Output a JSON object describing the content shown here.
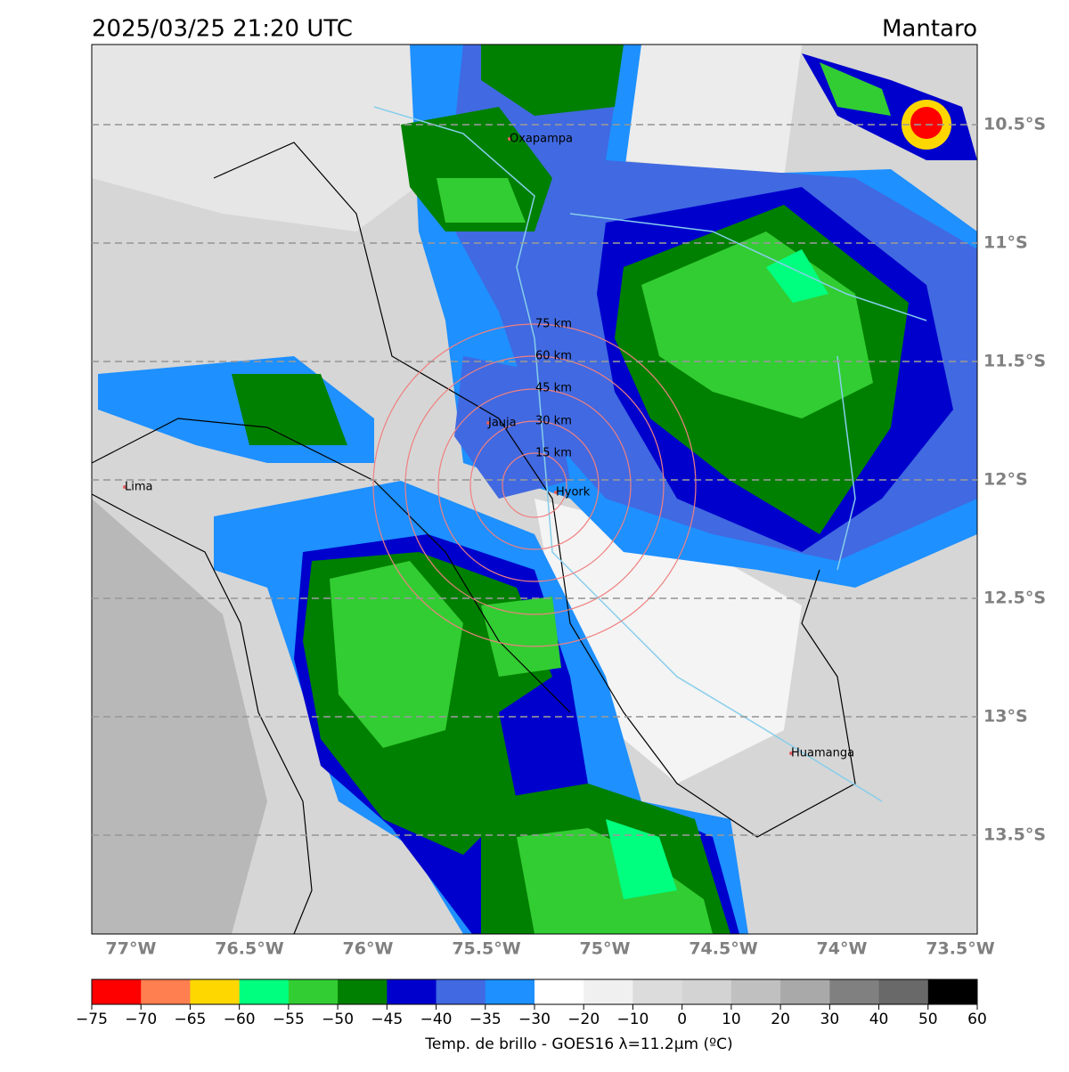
{
  "header": {
    "title": "2025/03/25 21:20 UTC",
    "region": "Mantaro"
  },
  "map": {
    "lon_ticks": [
      {
        "value": -77,
        "label": "77°W"
      },
      {
        "value": -76.5,
        "label": "76.5°W"
      },
      {
        "value": -76,
        "label": "76°W"
      },
      {
        "value": -75.5,
        "label": "75.5°W"
      },
      {
        "value": -75,
        "label": "75°W"
      },
      {
        "value": -74.5,
        "label": "74.5°W"
      },
      {
        "value": -74,
        "label": "74°W"
      },
      {
        "value": -73.5,
        "label": "73.5°W"
      }
    ],
    "lat_ticks": [
      {
        "value": -10.5,
        "label": "10.5°S"
      },
      {
        "value": -11,
        "label": "11°S"
      },
      {
        "value": -11.5,
        "label": "11.5°S"
      },
      {
        "value": -12,
        "label": "12°S"
      },
      {
        "value": -12.5,
        "label": "12.5°S"
      },
      {
        "value": -13,
        "label": "13°S"
      },
      {
        "value": -13.5,
        "label": "13.5°S"
      }
    ],
    "cities": [
      "Oxapampa",
      "Jauja",
      "Lima",
      "Hyork",
      "Huamanga"
    ],
    "rings": [
      "75 km",
      "60 km",
      "45 km",
      "30 km",
      "15 km"
    ]
  },
  "colorbar": {
    "label": "Temp. de brillo - GOES16 λ=11.2μm (ºC)",
    "ticks": [
      {
        "value": -75,
        "label": "−75"
      },
      {
        "value": -70,
        "label": "−70"
      },
      {
        "value": -65,
        "label": "−65"
      },
      {
        "value": -60,
        "label": "−60"
      },
      {
        "value": -55,
        "label": "−55"
      },
      {
        "value": -50,
        "label": "−50"
      },
      {
        "value": -45,
        "label": "−45"
      },
      {
        "value": -40,
        "label": "−40"
      },
      {
        "value": -35,
        "label": "−35"
      },
      {
        "value": -30,
        "label": "−30"
      },
      {
        "value": -20,
        "label": "−20"
      },
      {
        "value": -10,
        "label": "−10"
      },
      0,
      10,
      20,
      30,
      40,
      50,
      60
    ],
    "colors": [
      "#ff0000",
      "#ff7f50",
      "#ffd700",
      "#00ff7f",
      "#32cd32",
      "#008000",
      "#0000cd",
      "#4169e1",
      "#1e90ff",
      "#ffffff",
      "#f0f0f0",
      "#dcdcdc",
      "#d3d3d3",
      "#c0c0c0",
      "#a9a9a9",
      "#808080",
      "#696969",
      "#000000"
    ]
  }
}
